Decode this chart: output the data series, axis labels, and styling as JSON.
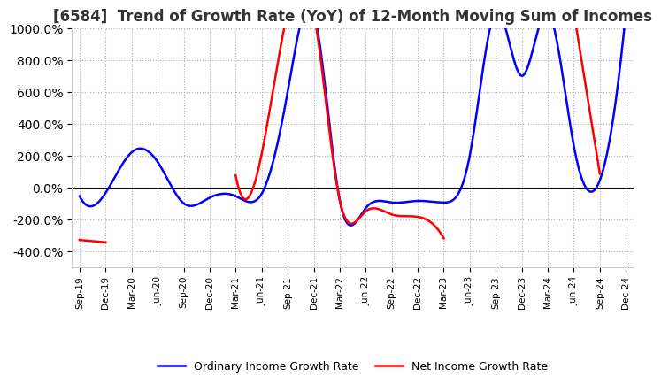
{
  "title": "[6584]  Trend of Growth Rate (YoY) of 12-Month Moving Sum of Incomes",
  "title_fontsize": 12,
  "ylim": [
    -500,
    1000
  ],
  "yticks": [
    -400,
    -200,
    0,
    200,
    400,
    600,
    800,
    1000
  ],
  "background_color": "#ffffff",
  "plot_bg_color": "#ffffff",
  "grid_color": "#b0b0b0",
  "ordinary_color": "#0000ff",
  "net_color": "#ff0000",
  "legend_labels": [
    "Ordinary Income Growth Rate",
    "Net Income Growth Rate"
  ],
  "x_labels": [
    "Sep-19",
    "Dec-19",
    "Mar-20",
    "Jun-20",
    "Sep-20",
    "Dec-20",
    "Mar-21",
    "Jun-21",
    "Sep-21",
    "Dec-21",
    "Mar-22",
    "Jun-22",
    "Sep-22",
    "Dec-22",
    "Mar-23",
    "Jun-23",
    "Sep-23",
    "Dec-23",
    "Mar-24",
    "Jun-24",
    "Sep-24",
    "Dec-24"
  ],
  "ordinary": [
    -55,
    -35,
    220,
    160,
    -100,
    -65,
    -55,
    -40,
    600,
    1100,
    -80,
    -130,
    -95,
    -85,
    -95,
    200,
    1100,
    700,
    1100,
    260,
    45,
    1100
  ],
  "net": [
    -330,
    -345,
    null,
    null,
    null,
    null,
    75,
    210,
    1100,
    1100,
    -80,
    -150,
    -170,
    -185,
    -320,
    null,
    null,
    null,
    null,
    1100,
    85,
    null
  ]
}
